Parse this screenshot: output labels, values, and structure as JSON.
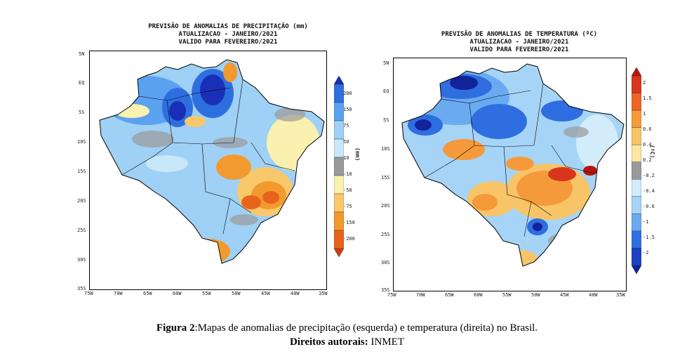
{
  "left_map": {
    "title_lines": [
      "PREVISÃO DE ANOMALIAS DE PRECIPITAÇÃO (mm)",
      "ATUALIZACAO - JANEIRO/2021",
      "VALIDO PARA FEVEREIRO/2021"
    ],
    "lat_labels": [
      "5N",
      "EQ",
      "5S",
      "10S",
      "15S",
      "20S",
      "25S",
      "30S",
      "35S"
    ],
    "lon_labels": [
      "75W",
      "70W",
      "65W",
      "60W",
      "55W",
      "50W",
      "45W",
      "40W",
      "35W"
    ],
    "colorbar_labels": [
      "200",
      "150",
      "75",
      "50",
      "10",
      "-10",
      "-50",
      "-75",
      "-150",
      "-200"
    ],
    "colorbar_colors": [
      "#1a2fb8",
      "#2e6fe0",
      "#5aa2f0",
      "#9fd0f5",
      "#c8e8fa",
      "#9a9a9a",
      "#faf0b0",
      "#f9c86a",
      "#f39a2e",
      "#e8641a",
      "#d13a12"
    ],
    "unit": "(mm)"
  },
  "right_map": {
    "title_lines": [
      "PREVISÃO DE ANOMALIAS DE TEMPERATURA (ºC)",
      "ATUALIZACAO - JANEIRO/2021",
      "VALIDO PARA FEVEREIRO/2021"
    ],
    "lat_labels": [
      "5N",
      "EQ",
      "5S",
      "10S",
      "15S",
      "20S",
      "25S",
      "30S",
      "35S"
    ],
    "lon_labels": [
      "75W",
      "70W",
      "65W",
      "60W",
      "55W",
      "50W",
      "45W",
      "40W",
      "35W"
    ],
    "colorbar_labels": [
      "2",
      "1.5",
      "1",
      "0.6",
      "0.4",
      "0.2",
      "-0.2",
      "-0.4",
      "-0.6",
      "-1",
      "-1.5",
      "-2"
    ],
    "colorbar_colors": [
      "#b8140e",
      "#d8361c",
      "#ee6424",
      "#f59a3a",
      "#f8c468",
      "#fbe6a4",
      "#9a9a9a",
      "#d2ecfa",
      "#a6d4f6",
      "#6aaaf0",
      "#2f6ee0",
      "#1c40c6",
      "#12229a"
    ],
    "unit": "(ºC)"
  },
  "caption": {
    "line1_bold": "Figura 2",
    "line1_text": ":Mapas de anomalias de precipitação (esquerda) e temperatura (direita) no Brasil.",
    "line2_bold": "Direitos autorais:",
    "line2_text": " INMET"
  }
}
